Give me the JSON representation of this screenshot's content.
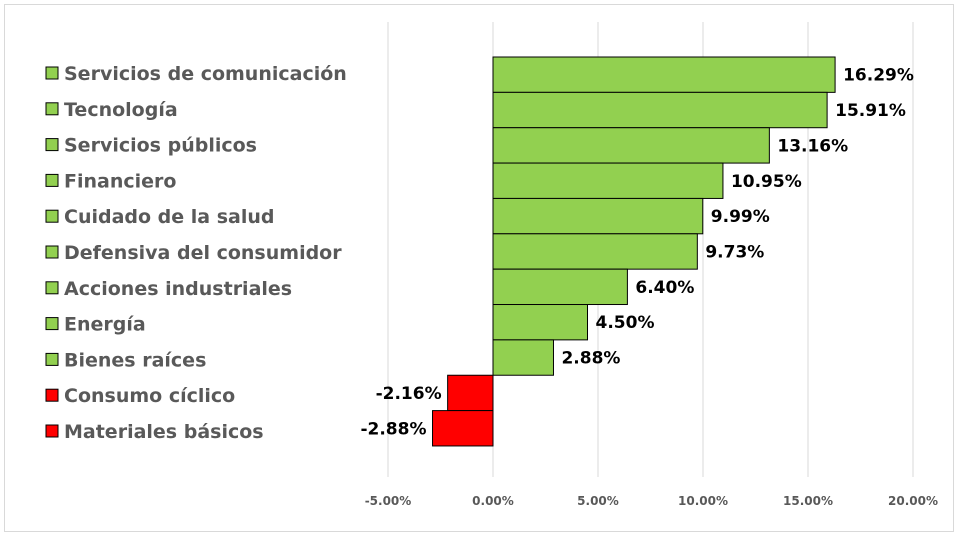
{
  "chart_data": {
    "type": "bar",
    "orientation": "horizontal",
    "title": "",
    "xlabel": "",
    "ylabel": "",
    "categories": [
      "Servicios de comunicación",
      "Tecnología",
      "Servicios públicos",
      "Financiero",
      "Cuidado de la salud",
      "Defensiva del consumidor",
      "Acciones industriales",
      "Energía",
      "Bienes raíces",
      "Consumo cíclico",
      "Materiales básicos"
    ],
    "values": [
      16.29,
      15.91,
      13.16,
      10.95,
      9.99,
      9.73,
      6.4,
      4.5,
      2.88,
      -2.16,
      -2.88
    ],
    "data_labels": [
      "16.29%",
      "15.91%",
      "13.16%",
      "10.95%",
      "9.99%",
      "9.73%",
      "6.40%",
      "4.50%",
      "2.88%",
      "-2.16%",
      "-2.88%"
    ],
    "xlim": [
      -5,
      20
    ],
    "x_ticks": [
      -5,
      0,
      5,
      10,
      15,
      20
    ],
    "x_tick_labels": [
      "-5.00%",
      "0.00%",
      "5.00%",
      "10.00%",
      "15.00%",
      "20.00%"
    ],
    "grid": "vertical",
    "legend_placement": "left",
    "colors": {
      "positive": "#92D050",
      "negative": "#FF0000",
      "grid": "#d9d9d9",
      "legend_text": "#595959",
      "tick_text": "#595959"
    }
  }
}
